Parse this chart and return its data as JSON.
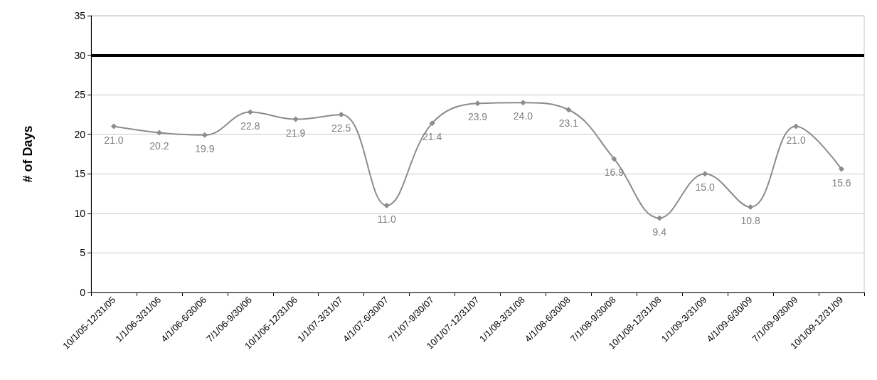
{
  "chart_data": {
    "type": "line",
    "ylabel": "# of Days",
    "categories": [
      "10/1/05-12/31/05",
      "1/1/06-3/31/06",
      "4/1/06-6/30/06",
      "7/1/06-9/30/06",
      "10/1/06-12/31/06",
      "1/1/07-3/31/07",
      "4/1/07-6/30/07",
      "7/1/07-9/30/07",
      "10/1/07-12/31/07",
      "1/1/08-3/31/08",
      "4/1/08-6/30/08",
      "7/1/08-9/30/08",
      "10/1/08-12/31/08",
      "1/1/09-3/31/09",
      "4/1/09-6/30/09",
      "7/1/09-9/30/09",
      "10/1/09-12/31/09"
    ],
    "series": [
      {
        "color": "#8c8c8c",
        "values": [
          21.0,
          20.2,
          19.9,
          22.8,
          21.9,
          22.5,
          11.0,
          21.4,
          23.9,
          24.0,
          23.1,
          16.9,
          9.4,
          15.0,
          10.8,
          21.0,
          15.6
        ],
        "value_labels": [
          "21.0",
          "20.2",
          "19.9",
          "22.8",
          "21.9",
          "22.5",
          "11.0",
          "21.4",
          "23.9",
          "24.0",
          "23.1",
          "16.9",
          "9.4",
          "15.0",
          "10.8",
          "21.0",
          "15.6"
        ]
      }
    ],
    "ylim": [
      0,
      35
    ],
    "yticks": [
      0,
      5,
      10,
      15,
      20,
      25,
      30,
      35
    ],
    "grid": "y",
    "marker": "diamond",
    "line_style": "solid",
    "ref_lines": [
      {
        "axis": "y",
        "value": 30,
        "color": "#000000"
      }
    ]
  }
}
